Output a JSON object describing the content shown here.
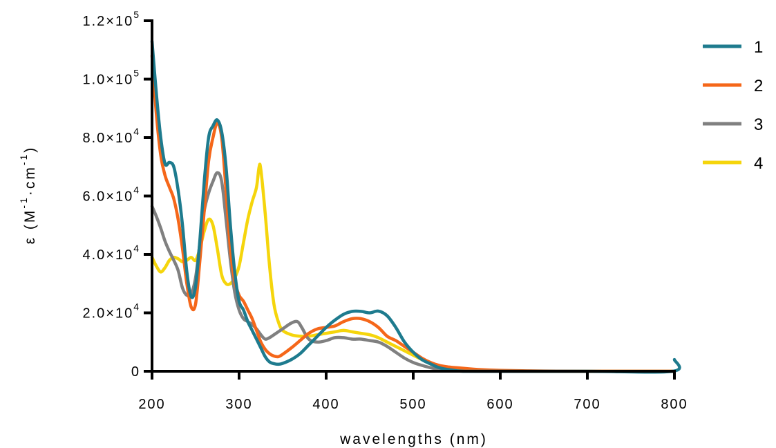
{
  "chart_data": {
    "type": "line",
    "title": "",
    "xlabel": "wavelengths (nm)",
    "ylabel_parts": {
      "prefix": "ε (M",
      "exp1": "-1",
      "mid": "·cm",
      "exp2": "-1",
      "suffix": ")"
    },
    "xlim": [
      200,
      800
    ],
    "ylim": [
      0,
      120000
    ],
    "x_ticks": [
      200,
      300,
      400,
      500,
      600,
      700,
      800
    ],
    "x_tick_labels": [
      "200",
      "300",
      "400",
      "500",
      "600",
      "700",
      "800"
    ],
    "y_ticks": [
      0,
      20000,
      40000,
      60000,
      80000,
      100000,
      120000
    ],
    "y_tick_labels": [
      {
        "mantissa": "0",
        "exp": ""
      },
      {
        "mantissa": "2.0×10",
        "exp": "4"
      },
      {
        "mantissa": "4.0×10",
        "exp": "4"
      },
      {
        "mantissa": "6.0×10",
        "exp": "4"
      },
      {
        "mantissa": "8.0×10",
        "exp": "4"
      },
      {
        "mantissa": "1.0×10",
        "exp": "5"
      },
      {
        "mantissa": "1.2×10",
        "exp": "5"
      }
    ],
    "grid": false,
    "legend_position": "top-right",
    "series": [
      {
        "name": "1",
        "color": "#1e7b8e",
        "points": [
          [
            200,
            113000
          ],
          [
            205,
            95000
          ],
          [
            210,
            80000
          ],
          [
            215,
            71000
          ],
          [
            220,
            71500
          ],
          [
            225,
            70000
          ],
          [
            230,
            62000
          ],
          [
            235,
            50000
          ],
          [
            240,
            34000
          ],
          [
            245,
            25500
          ],
          [
            250,
            29000
          ],
          [
            255,
            45000
          ],
          [
            260,
            65000
          ],
          [
            265,
            80000
          ],
          [
            270,
            84000
          ],
          [
            275,
            86000
          ],
          [
            280,
            82000
          ],
          [
            285,
            70000
          ],
          [
            290,
            50000
          ],
          [
            295,
            34000
          ],
          [
            300,
            24000
          ],
          [
            305,
            21000
          ],
          [
            310,
            17000
          ],
          [
            315,
            14000
          ],
          [
            320,
            11000
          ],
          [
            325,
            8000
          ],
          [
            330,
            5000
          ],
          [
            335,
            3200
          ],
          [
            340,
            2600
          ],
          [
            345,
            2400
          ],
          [
            350,
            2700
          ],
          [
            360,
            4000
          ],
          [
            370,
            6000
          ],
          [
            380,
            9000
          ],
          [
            390,
            12000
          ],
          [
            400,
            15000
          ],
          [
            410,
            17500
          ],
          [
            420,
            19500
          ],
          [
            430,
            20500
          ],
          [
            440,
            20500
          ],
          [
            450,
            20000
          ],
          [
            460,
            20600
          ],
          [
            470,
            19000
          ],
          [
            480,
            15000
          ],
          [
            490,
            10000
          ],
          [
            500,
            6500
          ],
          [
            510,
            4000
          ],
          [
            520,
            2500
          ],
          [
            530,
            1200
          ],
          [
            540,
            600
          ],
          [
            550,
            200
          ],
          [
            560,
            0
          ],
          [
            600,
            0
          ],
          [
            700,
            0
          ],
          [
            798,
            0
          ],
          [
            800,
            4000
          ]
        ]
      },
      {
        "name": "2",
        "color": "#f5671a",
        "points": [
          [
            200,
            108000
          ],
          [
            205,
            88000
          ],
          [
            210,
            74000
          ],
          [
            215,
            67000
          ],
          [
            220,
            63000
          ],
          [
            225,
            59000
          ],
          [
            230,
            52000
          ],
          [
            235,
            42000
          ],
          [
            240,
            30000
          ],
          [
            245,
            22000
          ],
          [
            250,
            23000
          ],
          [
            255,
            38000
          ],
          [
            260,
            55000
          ],
          [
            265,
            72000
          ],
          [
            270,
            80000
          ],
          [
            275,
            85000
          ],
          [
            280,
            80000
          ],
          [
            285,
            62000
          ],
          [
            290,
            42000
          ],
          [
            295,
            31000
          ],
          [
            300,
            26000
          ],
          [
            305,
            24000
          ],
          [
            310,
            21000
          ],
          [
            315,
            18000
          ],
          [
            320,
            14000
          ],
          [
            325,
            10000
          ],
          [
            330,
            7500
          ],
          [
            335,
            6000
          ],
          [
            340,
            5200
          ],
          [
            345,
            5000
          ],
          [
            350,
            5800
          ],
          [
            360,
            8000
          ],
          [
            370,
            10500
          ],
          [
            380,
            13000
          ],
          [
            390,
            14500
          ],
          [
            400,
            15000
          ],
          [
            410,
            15500
          ],
          [
            420,
            17000
          ],
          [
            430,
            18000
          ],
          [
            440,
            18000
          ],
          [
            450,
            17000
          ],
          [
            460,
            15000
          ],
          [
            470,
            12000
          ],
          [
            480,
            10500
          ],
          [
            490,
            8500
          ],
          [
            500,
            6500
          ],
          [
            510,
            4500
          ],
          [
            520,
            3000
          ],
          [
            530,
            2000
          ],
          [
            540,
            1500
          ],
          [
            550,
            1200
          ],
          [
            575,
            600
          ],
          [
            600,
            300
          ],
          [
            650,
            100
          ],
          [
            700,
            0
          ],
          [
            800,
            0
          ]
        ]
      },
      {
        "name": "3",
        "color": "#808080",
        "points": [
          [
            200,
            56500
          ],
          [
            205,
            53000
          ],
          [
            210,
            49000
          ],
          [
            215,
            44500
          ],
          [
            220,
            41000
          ],
          [
            225,
            38000
          ],
          [
            230,
            34500
          ],
          [
            235,
            28500
          ],
          [
            240,
            26000
          ],
          [
            245,
            26500
          ],
          [
            250,
            32000
          ],
          [
            255,
            44000
          ],
          [
            260,
            55000
          ],
          [
            265,
            61000
          ],
          [
            270,
            65000
          ],
          [
            275,
            68000
          ],
          [
            280,
            65000
          ],
          [
            285,
            52000
          ],
          [
            290,
            38000
          ],
          [
            295,
            27000
          ],
          [
            300,
            21000
          ],
          [
            305,
            18000
          ],
          [
            310,
            17000
          ],
          [
            315,
            16000
          ],
          [
            320,
            14500
          ],
          [
            325,
            12500
          ],
          [
            330,
            11000
          ],
          [
            335,
            11500
          ],
          [
            340,
            12500
          ],
          [
            350,
            14500
          ],
          [
            360,
            16500
          ],
          [
            367,
            17000
          ],
          [
            372,
            15000
          ],
          [
            380,
            11000
          ],
          [
            390,
            10000
          ],
          [
            400,
            10500
          ],
          [
            410,
            11500
          ],
          [
            420,
            11500
          ],
          [
            430,
            11000
          ],
          [
            440,
            11000
          ],
          [
            450,
            10500
          ],
          [
            460,
            10000
          ],
          [
            470,
            8500
          ],
          [
            480,
            6500
          ],
          [
            490,
            4500
          ],
          [
            500,
            3000
          ],
          [
            510,
            2000
          ],
          [
            520,
            1200
          ],
          [
            530,
            600
          ],
          [
            540,
            300
          ],
          [
            550,
            100
          ],
          [
            600,
            0
          ],
          [
            800,
            0
          ]
        ]
      },
      {
        "name": "4",
        "color": "#f5d50c",
        "points": [
          [
            200,
            39000
          ],
          [
            205,
            36000
          ],
          [
            210,
            34000
          ],
          [
            215,
            35500
          ],
          [
            220,
            38000
          ],
          [
            225,
            39000
          ],
          [
            230,
            38500
          ],
          [
            235,
            37500
          ],
          [
            240,
            38000
          ],
          [
            245,
            39000
          ],
          [
            250,
            38000
          ],
          [
            255,
            42000
          ],
          [
            260,
            48000
          ],
          [
            265,
            52000
          ],
          [
            270,
            50000
          ],
          [
            275,
            42000
          ],
          [
            280,
            33000
          ],
          [
            285,
            30000
          ],
          [
            290,
            30000
          ],
          [
            295,
            32000
          ],
          [
            300,
            36000
          ],
          [
            305,
            44000
          ],
          [
            310,
            52000
          ],
          [
            315,
            58000
          ],
          [
            320,
            63000
          ],
          [
            323,
            70000
          ],
          [
            325,
            69000
          ],
          [
            330,
            54000
          ],
          [
            335,
            36000
          ],
          [
            340,
            23000
          ],
          [
            345,
            17000
          ],
          [
            350,
            14000
          ],
          [
            360,
            12500
          ],
          [
            370,
            12000
          ],
          [
            380,
            12000
          ],
          [
            390,
            12500
          ],
          [
            400,
            13000
          ],
          [
            410,
            13500
          ],
          [
            420,
            14000
          ],
          [
            430,
            13500
          ],
          [
            440,
            13000
          ],
          [
            450,
            12500
          ],
          [
            460,
            11500
          ],
          [
            470,
            10000
          ],
          [
            480,
            8500
          ],
          [
            490,
            7000
          ],
          [
            500,
            5500
          ],
          [
            510,
            4000
          ],
          [
            520,
            2500
          ],
          [
            530,
            1500
          ],
          [
            540,
            1000
          ],
          [
            550,
            700
          ],
          [
            575,
            300
          ],
          [
            600,
            100
          ],
          [
            650,
            0
          ],
          [
            800,
            0
          ]
        ]
      }
    ]
  }
}
